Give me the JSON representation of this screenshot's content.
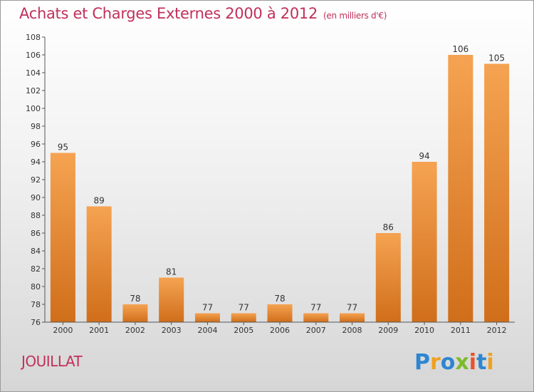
{
  "header": {
    "title": "Achats et Charges Externes 2000 à 2012",
    "unit": "(en milliers d'€)"
  },
  "footer": {
    "place": "JOUILLAT",
    "logo_text": "Proxiti"
  },
  "colors": {
    "bar_top": "#f5a352",
    "bar_bottom": "#d06e1a",
    "title": "#c0305a",
    "axis": "#555555"
  },
  "chart_data": {
    "type": "bar",
    "title": "Achats et Charges Externes 2000 à 2012",
    "xlabel": "",
    "ylabel": "",
    "categories": [
      "2000",
      "2001",
      "2002",
      "2003",
      "2004",
      "2005",
      "2006",
      "2007",
      "2008",
      "2009",
      "2010",
      "2011",
      "2012"
    ],
    "values": [
      95,
      89,
      78,
      81,
      77,
      77,
      78,
      77,
      77,
      86,
      94,
      106,
      105
    ],
    "ylim": [
      76,
      108
    ],
    "yticks": [
      76,
      78,
      80,
      82,
      84,
      86,
      88,
      90,
      92,
      94,
      96,
      98,
      100,
      102,
      104,
      106,
      108
    ],
    "grid": false,
    "data_labels": true
  }
}
